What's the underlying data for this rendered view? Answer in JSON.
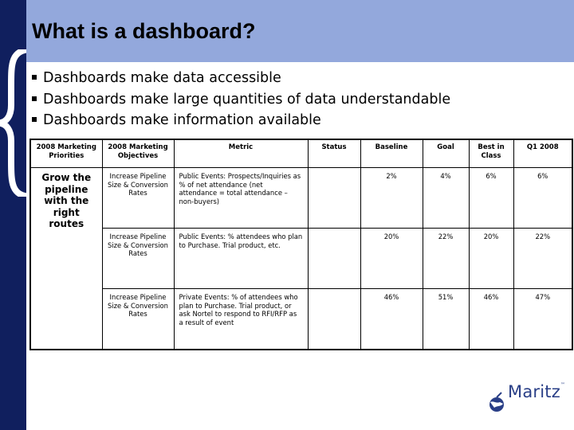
{
  "slide": {
    "title": "What is a dashboard?",
    "bullets": [
      "Dashboards make data accessible",
      "Dashboards make large quantities of data understandable",
      "Dashboards make information available"
    ]
  },
  "table": {
    "headers": [
      "2008 Marketing Priorities",
      "2008 Marketing Objectives",
      "Metric",
      "Status",
      "Baseline",
      "Goal",
      "Best in Class",
      "Q1 2008"
    ],
    "priority": "Grow the pipeline with the right routes",
    "rows": [
      {
        "objective": "Increase Pipeline Size & Conversion Rates",
        "metric": "Public Events: Prospects/Inquiries as % of net attendance (net attendance = total attendance – non-buyers)",
        "status": "",
        "baseline": "2%",
        "goal": "4%",
        "best": "6%",
        "q1": "6%"
      },
      {
        "objective": "Increase Pipeline Size & Conversion Rates",
        "metric": "Public Events: % attendees who plan to Purchase. Trial product, etc.",
        "status": "",
        "baseline": "20%",
        "goal": "22%",
        "best": "20%",
        "q1": "22%"
      },
      {
        "objective": "Increase Pipeline Size & Conversion Rates",
        "metric": "Private Events: % of attendees who plan to Purchase. Trial product, or ask Nortel to respond to RFI/RFP as a result of event",
        "status": "",
        "baseline": "46%",
        "goal": "51%",
        "best": "46%",
        "q1": "47%"
      }
    ]
  },
  "logo": {
    "text": "Maritz",
    "mark": "™"
  },
  "colors": {
    "dark_navy": "#101f5e",
    "title_band": "#93a8dc",
    "logo_blue": "#2a3f87"
  }
}
